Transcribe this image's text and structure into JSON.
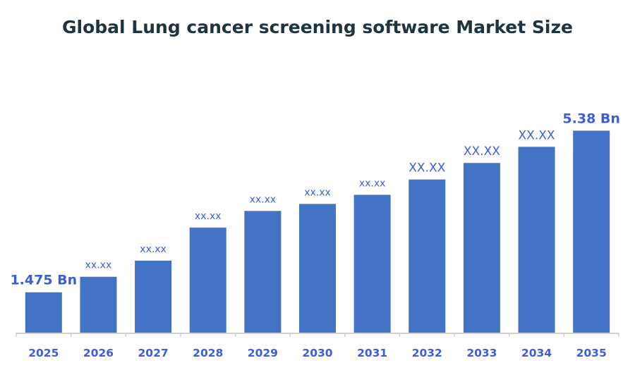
{
  "chart_data": {
    "type": "bar",
    "title": "Global Lung cancer screening software Market Size",
    "xlabel": "",
    "ylabel": "",
    "categories": [
      "2025",
      "2026",
      "2027",
      "2028",
      "2029",
      "2030",
      "2031",
      "2032",
      "2033",
      "2034",
      "2035"
    ],
    "values": [
      1.475,
      1.85,
      2.24,
      3.04,
      3.44,
      3.61,
      3.83,
      4.2,
      4.6,
      4.99,
      5.38
    ],
    "data_labels": [
      "1.475 Bn",
      "xx.xx",
      "xx.xx",
      "xx.xx",
      "xx.xx",
      "xx.xx",
      "xx.xx",
      "XX.XX",
      "XX.XX",
      "XX.XX",
      "5.38 Bn"
    ],
    "ylim": [
      0.5,
      6
    ],
    "grid": false,
    "legend": "none",
    "colors": {
      "bar": "#4472C4",
      "label": "#3D5ED8",
      "title": "#1E3441",
      "axis": "#D0D0D0"
    }
  }
}
